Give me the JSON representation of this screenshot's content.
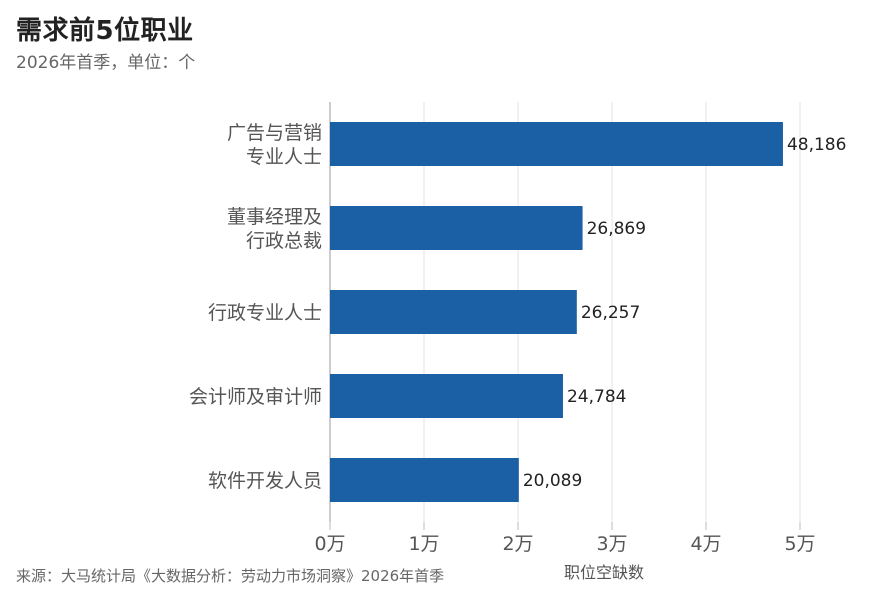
{
  "title": "需求前5位职业",
  "subtitle": "2026年首季，单位：个",
  "source": "来源：大马统计局《大数据分析：劳动力市场洞察》2026年首季",
  "colors": {
    "bar": "#1b5fa5",
    "grid": "#e3e3e3",
    "axis": "#bbbbbb"
  },
  "chart_data": {
    "type": "bar",
    "orientation": "horizontal",
    "categories": [
      [
        "广告与营销",
        "专业人士"
      ],
      [
        "董事经理及",
        "行政总裁"
      ],
      [
        "行政专业人士"
      ],
      [
        "会计师及审计师"
      ],
      [
        "软件开发人员"
      ]
    ],
    "values": [
      48186,
      26869,
      26257,
      24784,
      20089
    ],
    "value_labels": [
      "48,186",
      "26,869",
      "26,257",
      "24,784",
      "20,089"
    ],
    "xlim": [
      0,
      50000
    ],
    "x_ticks": [
      0,
      10000,
      20000,
      30000,
      40000,
      50000
    ],
    "x_tick_labels": [
      "0万",
      "1万",
      "2万",
      "3万",
      "4万",
      "5万"
    ],
    "xlabel": "职位空缺数",
    "grid": "vertical",
    "legend": "none"
  }
}
